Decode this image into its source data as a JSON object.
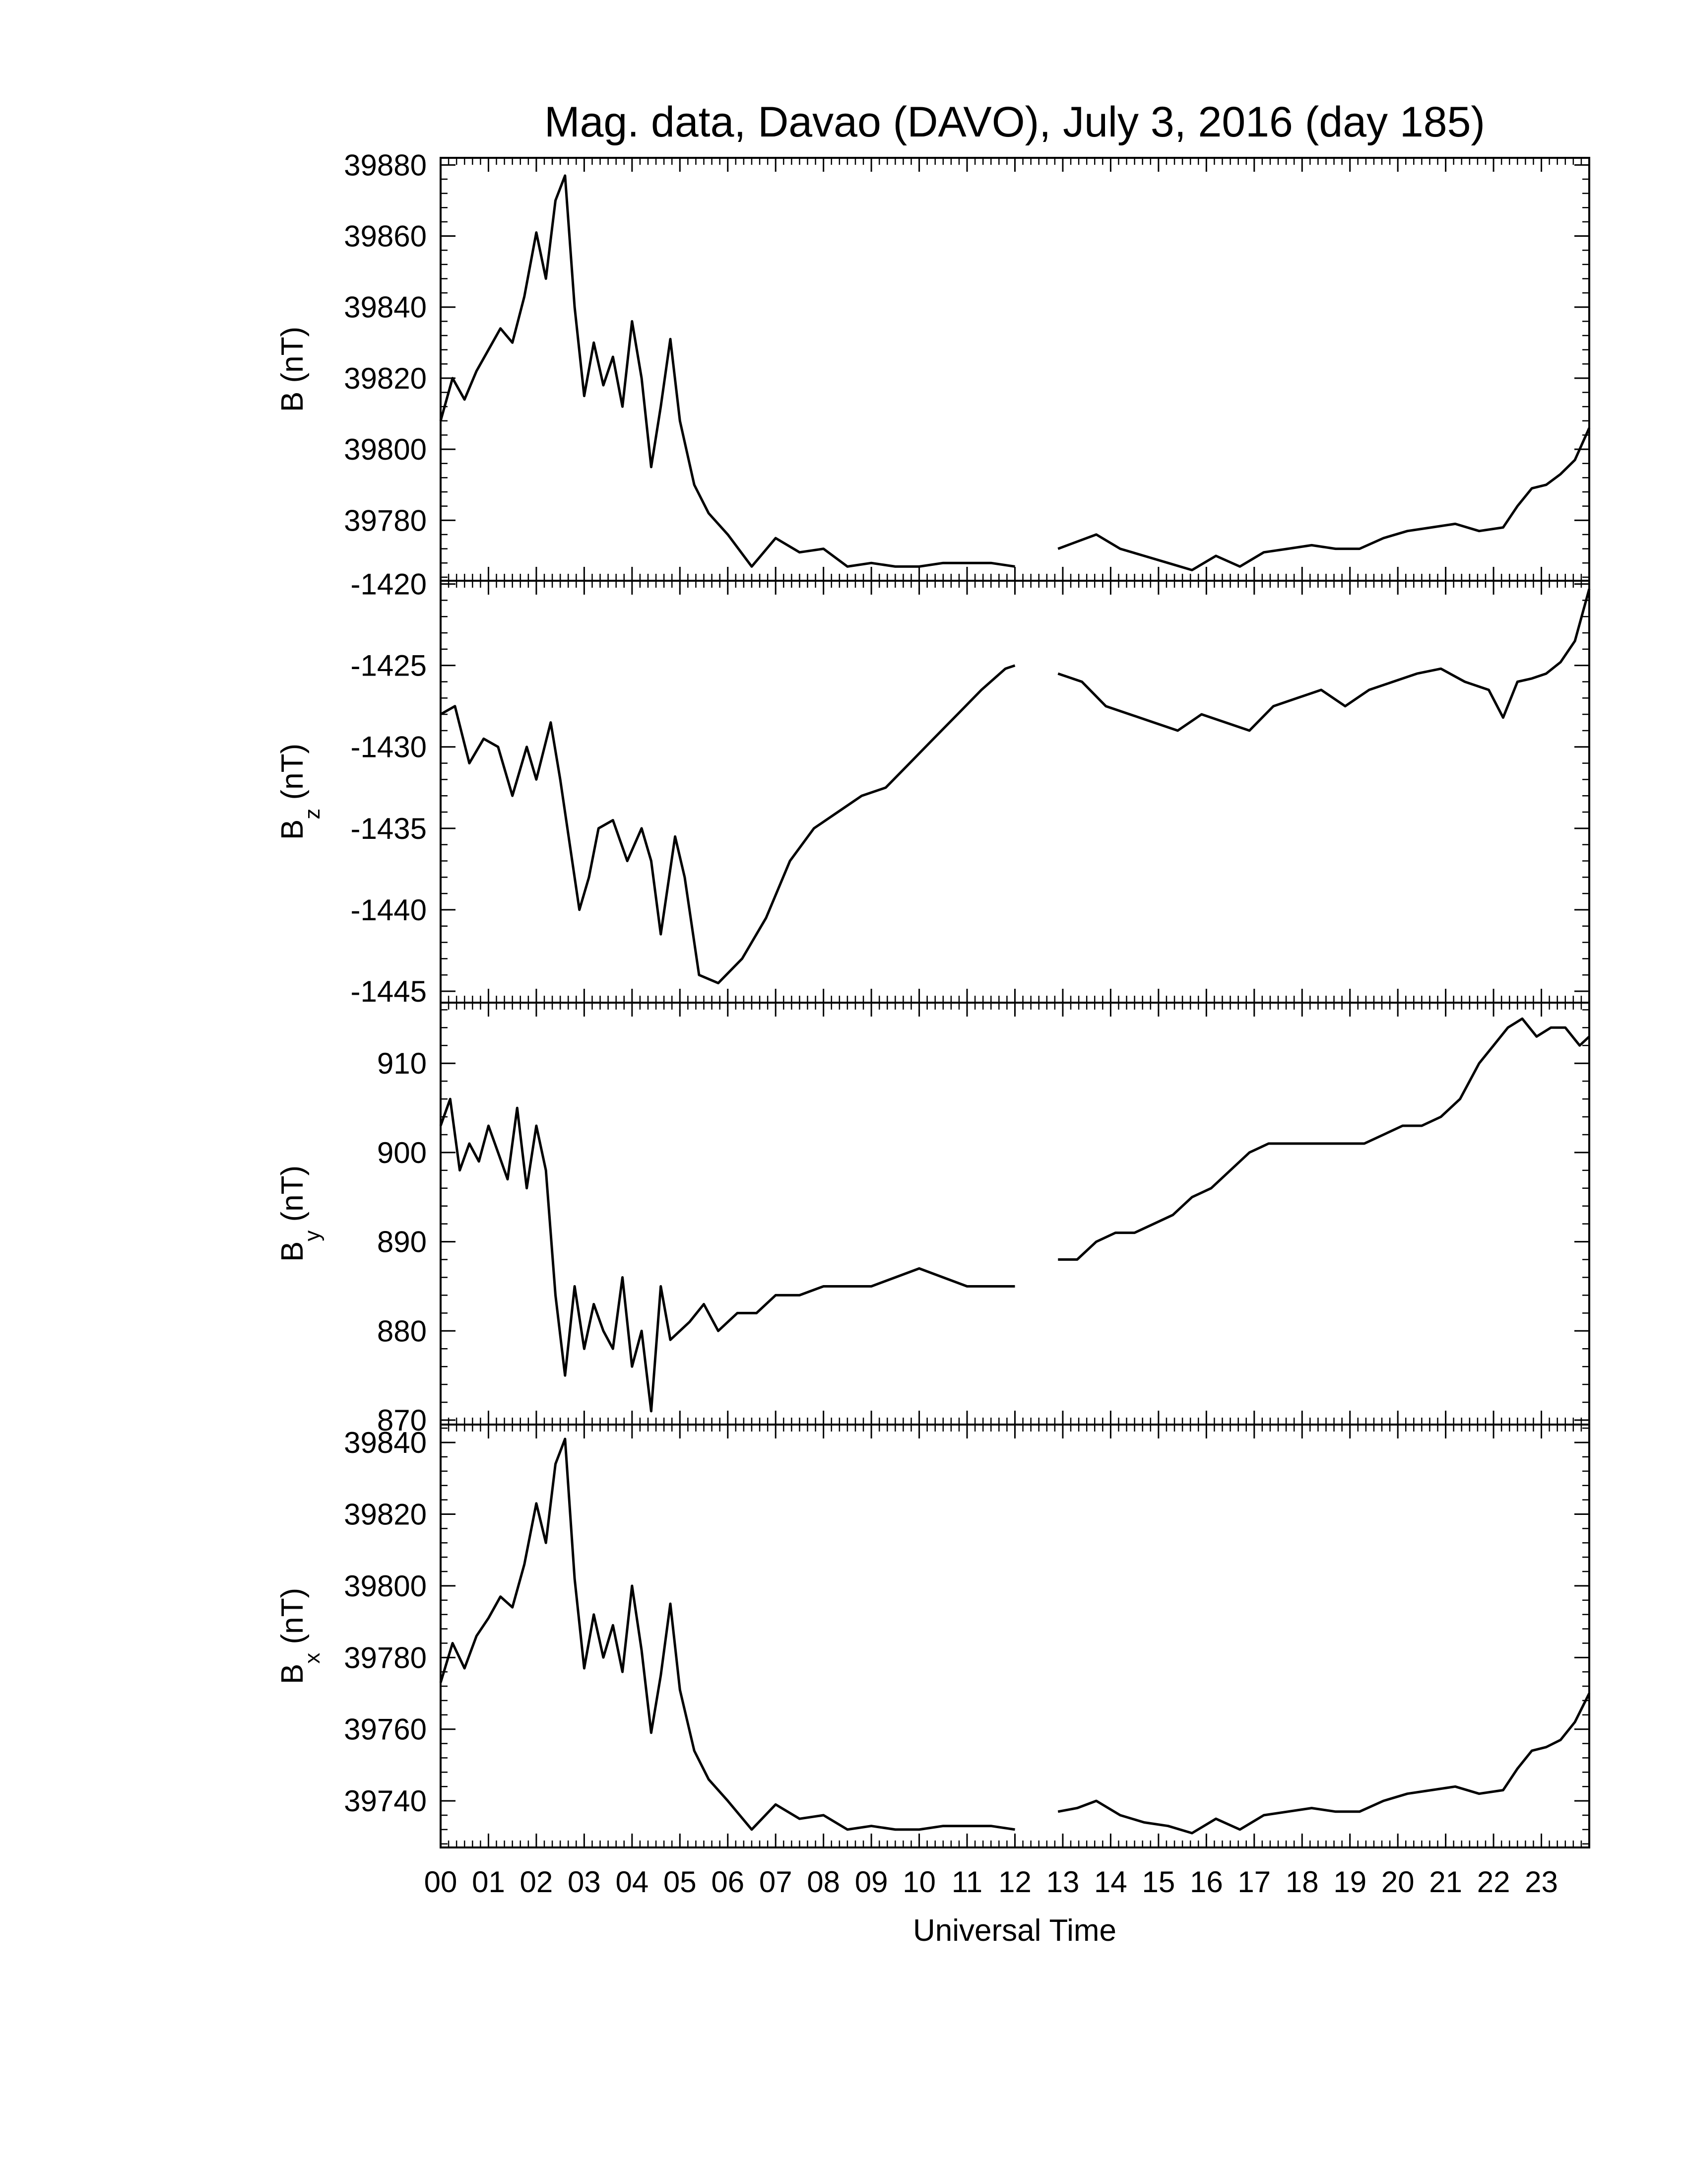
{
  "chart_data": {
    "type": "line",
    "title": "Mag. data, Davao (DAVO), July 3, 2016 (day 185)",
    "xlabel": "Universal Time",
    "x_ticks": [
      "00",
      "01",
      "02",
      "03",
      "04",
      "05",
      "06",
      "07",
      "08",
      "09",
      "10",
      "11",
      "12",
      "13",
      "14",
      "15",
      "16",
      "17",
      "18",
      "19",
      "20",
      "21",
      "22",
      "23"
    ],
    "xlim": [
      0,
      24
    ],
    "data_gap": [
      12.0,
      12.9
    ],
    "line_color": "#000000",
    "panels": [
      {
        "name": "B",
        "ylabel_main": "B (nT)",
        "ylabel_sub": "",
        "ylabel_tail": "",
        "ylim": [
          39763,
          39882
        ],
        "yticks": [
          "39880",
          "39860",
          "39840",
          "39820",
          "39800",
          "39780"
        ],
        "ytick_values": [
          39880,
          39860,
          39840,
          39820,
          39800,
          39780
        ],
        "series": {
          "x": [
            0,
            0.25,
            0.5,
            0.75,
            1.0,
            1.25,
            1.5,
            1.75,
            2.0,
            2.2,
            2.4,
            2.6,
            2.8,
            3.0,
            3.2,
            3.4,
            3.6,
            3.8,
            4.0,
            4.2,
            4.4,
            4.6,
            4.8,
            5.0,
            5.3,
            5.6,
            6.0,
            6.5,
            7.0,
            7.5,
            8.0,
            8.5,
            9.0,
            9.5,
            10.0,
            10.5,
            11.0,
            11.5,
            12.0,
            12.9,
            13.3,
            13.7,
            14.2,
            14.7,
            15.2,
            15.7,
            16.2,
            16.7,
            17.2,
            17.7,
            18.2,
            18.7,
            19.2,
            19.7,
            20.2,
            20.7,
            21.2,
            21.7,
            22.2,
            22.5,
            22.8,
            23.1,
            23.4,
            23.7,
            24.0
          ],
          "y": [
            39808,
            39820,
            39814,
            39822,
            39828,
            39834,
            39830,
            39843,
            39861,
            39848,
            39870,
            39877,
            39840,
            39815,
            39830,
            39818,
            39826,
            39812,
            39836,
            39820,
            39795,
            39812,
            39831,
            39808,
            39790,
            39782,
            39776,
            39767,
            39775,
            39771,
            39772,
            39767,
            39768,
            39767,
            39767,
            39768,
            39768,
            39768,
            39767,
            39772,
            39774,
            39776,
            39772,
            39770,
            39768,
            39766,
            39770,
            39767,
            39771,
            39772,
            39773,
            39772,
            39772,
            39775,
            39777,
            39778,
            39779,
            39777,
            39778,
            39784,
            39789,
            39790,
            39793,
            39797,
            39806
          ]
        }
      },
      {
        "name": "Bz",
        "ylabel_main": "B",
        "ylabel_sub": "z",
        "ylabel_tail": "(nT)",
        "ylim": [
          -1445.7,
          -1419.8
        ],
        "yticks": [
          "-1420",
          "-1425",
          "-1430",
          "-1435",
          "-1440",
          "-1445"
        ],
        "ytick_values": [
          -1420,
          -1425,
          -1430,
          -1435,
          -1440,
          -1445
        ],
        "series": {
          "x": [
            0,
            0.3,
            0.6,
            0.9,
            1.2,
            1.5,
            1.8,
            2.0,
            2.3,
            2.5,
            2.7,
            2.9,
            3.1,
            3.3,
            3.6,
            3.9,
            4.2,
            4.4,
            4.6,
            4.9,
            5.1,
            5.4,
            5.8,
            6.3,
            6.8,
            7.3,
            7.8,
            8.3,
            8.8,
            9.3,
            9.8,
            10.3,
            10.8,
            11.3,
            11.8,
            12.0,
            12.9,
            13.4,
            13.9,
            14.4,
            14.9,
            15.4,
            15.9,
            16.4,
            16.9,
            17.4,
            17.9,
            18.4,
            18.9,
            19.4,
            19.9,
            20.4,
            20.9,
            21.4,
            21.9,
            22.2,
            22.5,
            22.8,
            23.1,
            23.4,
            23.7,
            24.0
          ],
          "y": [
            -1428,
            -1427.5,
            -1431,
            -1429.5,
            -1430,
            -1433,
            -1430,
            -1432,
            -1428.5,
            -1432,
            -1436,
            -1440,
            -1438,
            -1435,
            -1434.5,
            -1437,
            -1435,
            -1437,
            -1441.5,
            -1435.5,
            -1438,
            -1444,
            -1444.5,
            -1443,
            -1440.5,
            -1437,
            -1435,
            -1434,
            -1433,
            -1432.5,
            -1431,
            -1429.5,
            -1428,
            -1426.5,
            -1425.2,
            -1425.0,
            -1425.5,
            -1426,
            -1427.5,
            -1428,
            -1428.5,
            -1429,
            -1428,
            -1428.5,
            -1429,
            -1427.5,
            -1427,
            -1426.5,
            -1427.5,
            -1426.5,
            -1426,
            -1425.5,
            -1425.2,
            -1426,
            -1426.5,
            -1428.2,
            -1426,
            -1425.8,
            -1425.5,
            -1424.8,
            -1423.5,
            -1420.3
          ]
        }
      },
      {
        "name": "By",
        "ylabel_main": "B",
        "ylabel_sub": "y",
        "ylabel_tail": "(nT)",
        "ylim": [
          869.5,
          916.8
        ],
        "yticks": [
          "910",
          "900",
          "890",
          "880",
          "870"
        ],
        "ytick_values": [
          910,
          900,
          890,
          880,
          870
        ],
        "series": {
          "x": [
            0,
            0.2,
            0.4,
            0.6,
            0.8,
            1.0,
            1.2,
            1.4,
            1.6,
            1.8,
            2.0,
            2.2,
            2.4,
            2.6,
            2.8,
            3.0,
            3.2,
            3.4,
            3.6,
            3.8,
            4.0,
            4.2,
            4.4,
            4.6,
            4.8,
            5.0,
            5.2,
            5.5,
            5.8,
            6.2,
            6.6,
            7.0,
            7.5,
            8.0,
            8.5,
            9.0,
            9.5,
            10.0,
            10.5,
            11.0,
            11.5,
            12.0,
            12.9,
            13.3,
            13.7,
            14.1,
            14.5,
            14.9,
            15.3,
            15.7,
            16.1,
            16.5,
            16.9,
            17.3,
            17.7,
            18.1,
            18.5,
            18.9,
            19.3,
            19.7,
            20.1,
            20.5,
            20.9,
            21.3,
            21.7,
            22.0,
            22.3,
            22.6,
            22.9,
            23.2,
            23.5,
            23.8,
            24.0
          ],
          "y": [
            903,
            906,
            898,
            901,
            899,
            903,
            900,
            897,
            905,
            896,
            903,
            898,
            884,
            875,
            885,
            878,
            883,
            880,
            878,
            886,
            876,
            880,
            871,
            885,
            879,
            880,
            881,
            883,
            880,
            882,
            882,
            884,
            884,
            885,
            885,
            885,
            886,
            887,
            886,
            885,
            885,
            885,
            888,
            888,
            890,
            891,
            891,
            892,
            893,
            895,
            896,
            898,
            900,
            901,
            901,
            901,
            901,
            901,
            901,
            902,
            903,
            903,
            904,
            906,
            910,
            912,
            914,
            915,
            913,
            914,
            914,
            912,
            913
          ]
        }
      },
      {
        "name": "Bx",
        "ylabel_main": "B",
        "ylabel_sub": "x",
        "ylabel_tail": "(nT)",
        "ylim": [
          39727,
          39845
        ],
        "yticks": [
          "39840",
          "39820",
          "39800",
          "39780",
          "39760",
          "39740"
        ],
        "ytick_values": [
          39840,
          39820,
          39800,
          39780,
          39760,
          39740
        ],
        "series": {
          "x": [
            0,
            0.25,
            0.5,
            0.75,
            1.0,
            1.25,
            1.5,
            1.75,
            2.0,
            2.2,
            2.4,
            2.6,
            2.8,
            3.0,
            3.2,
            3.4,
            3.6,
            3.8,
            4.0,
            4.2,
            4.4,
            4.6,
            4.8,
            5.0,
            5.3,
            5.6,
            6.0,
            6.5,
            7.0,
            7.5,
            8.0,
            8.5,
            9.0,
            9.5,
            10.0,
            10.5,
            11.0,
            11.5,
            12.0,
            12.9,
            13.3,
            13.7,
            14.2,
            14.7,
            15.2,
            15.7,
            16.2,
            16.7,
            17.2,
            17.7,
            18.2,
            18.7,
            19.2,
            19.7,
            20.2,
            20.7,
            21.2,
            21.7,
            22.2,
            22.5,
            22.8,
            23.1,
            23.4,
            23.7,
            24.0
          ],
          "y": [
            39773,
            39784,
            39777,
            39786,
            39791,
            39797,
            39794,
            39806,
            39823,
            39812,
            39834,
            39841,
            39802,
            39777,
            39792,
            39780,
            39789,
            39776,
            39800,
            39782,
            39759,
            39775,
            39795,
            39771,
            39754,
            39746,
            39740,
            39732,
            39739,
            39735,
            39736,
            39732,
            39733,
            39732,
            39732,
            39733,
            39733,
            39733,
            39732,
            39737,
            39738,
            39740,
            39736,
            39734,
            39733,
            39731,
            39735,
            39732,
            39736,
            39737,
            39738,
            39737,
            39737,
            39740,
            39742,
            39743,
            39744,
            39742,
            39743,
            39749,
            39754,
            39755,
            39757,
            39762,
            39770
          ]
        }
      }
    ]
  }
}
